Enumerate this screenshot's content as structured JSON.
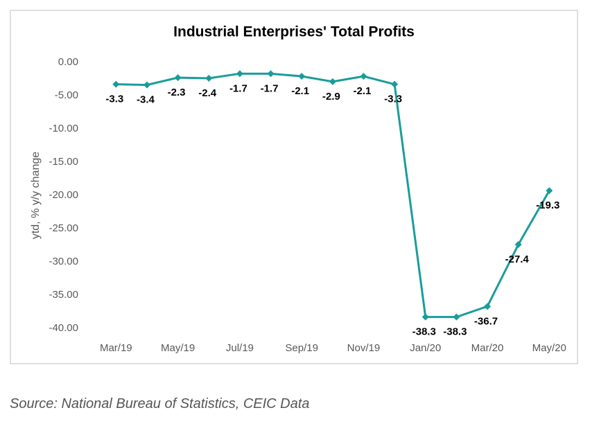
{
  "chart_data": {
    "type": "line",
    "title": "Industrial Enterprises' Total Profits",
    "ylabel": "ytd, % y/y change",
    "categories": [
      "Mar/19",
      null,
      "May/19",
      null,
      "Jul/19",
      null,
      "Sep/19",
      null,
      "Nov/19",
      null,
      "Jan/20",
      null,
      "Mar/20",
      null,
      "May/20"
    ],
    "values": [
      -3.3,
      -3.4,
      -2.3,
      -2.4,
      -1.7,
      -1.7,
      -2.1,
      -2.9,
      -2.1,
      -3.3,
      -38.3,
      -38.3,
      -36.7,
      -27.4,
      -19.3
    ],
    "color": "#1a9c9a",
    "ylim": [
      -40,
      0
    ],
    "yticks": [
      {
        "value": 0,
        "label": "0.00"
      },
      {
        "value": -5,
        "label": "-5.00"
      },
      {
        "value": -10,
        "label": "-10.00"
      },
      {
        "value": -15,
        "label": "-15.00"
      },
      {
        "value": -20,
        "label": "-20.00"
      },
      {
        "value": -25,
        "label": "-25.00"
      },
      {
        "value": -30,
        "label": "-30.00"
      },
      {
        "value": -35,
        "label": "-35.00"
      },
      {
        "value": -40,
        "label": "-40.00"
      }
    ]
  },
  "source": "Source: National Bureau of Statistics, CEIC Data"
}
